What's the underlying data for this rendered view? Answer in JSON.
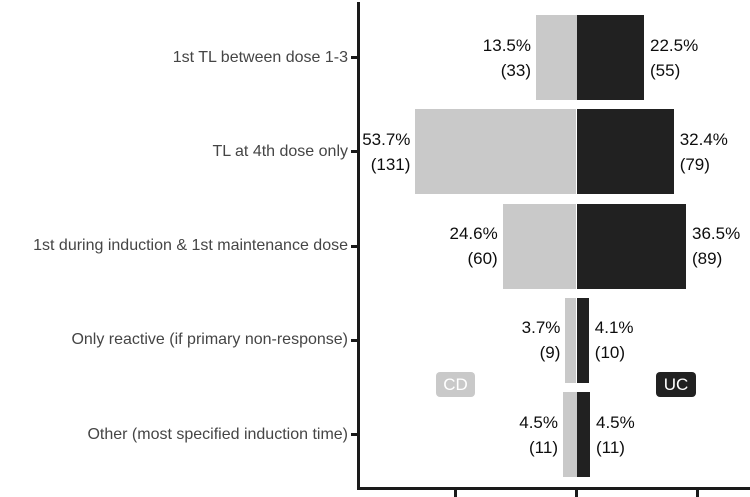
{
  "chart_data": {
    "type": "bar",
    "variant": "diverging-horizontal-back-to-back",
    "title": "",
    "xlabel": "",
    "ylabel": "",
    "categories": [
      "1st TL between dose 1-3",
      "TL at 4th dose only",
      "1st during induction & 1st maintenance dose",
      "Only reactive (if primary non-response)",
      "Other (most specified induction time)"
    ],
    "series": [
      {
        "name": "CD",
        "side": "left",
        "color": "#c9c9c9",
        "values_pct": [
          13.5,
          53.7,
          24.6,
          3.7,
          4.5
        ],
        "counts": [
          33,
          131,
          60,
          9,
          11
        ],
        "labels_pct": [
          "13.5%",
          "53.7%",
          "24.6%",
          "3.7%",
          "4.5%"
        ],
        "labels_count": [
          "(33)",
          "(131)",
          "(60)",
          "(9)",
          "(11)"
        ]
      },
      {
        "name": "UC",
        "side": "right",
        "color": "#212121",
        "values_pct": [
          22.5,
          32.4,
          36.5,
          4.1,
          4.5
        ],
        "counts": [
          55,
          79,
          89,
          10,
          11
        ],
        "labels_pct": [
          "22.5%",
          "32.4%",
          "36.5%",
          "4.1%",
          "4.5%"
        ],
        "labels_count": [
          "(55)",
          "(79)",
          "(89)",
          "(10)",
          "(11)"
        ]
      }
    ],
    "axis": {
      "x_ticks_pct": [
        -40,
        0,
        40
      ],
      "x_tick_labels_visible": false,
      "grid": false,
      "legend_position": "inside-plot, between 4th and 5th bars"
    },
    "colors": {
      "axis_line": "#1a1a1a",
      "category_text": "#454545",
      "value_text": "#0d0d0d",
      "legend_text": "#ffffff"
    }
  }
}
